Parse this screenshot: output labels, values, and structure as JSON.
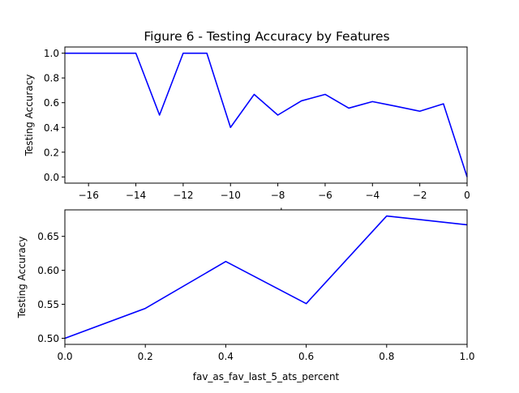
{
  "figure": {
    "title": "Figure 6 - Testing Accuracy by Features"
  },
  "chart_data": [
    {
      "type": "line",
      "title": "Figure 6 - Testing Accuracy by Features",
      "xlabel": "spread",
      "ylabel": "Testing Accuracy",
      "xlim": [
        -17,
        0
      ],
      "ylim": [
        -0.05,
        1.05
      ],
      "xticks": [
        -16,
        -14,
        -12,
        -10,
        -8,
        -6,
        -4,
        -2,
        0
      ],
      "yticks": [
        0.0,
        0.2,
        0.4,
        0.6,
        0.8,
        1.0
      ],
      "xtick_labels": [
        "−16",
        "−14",
        "−12",
        "−10",
        "−8",
        "−6",
        "−4",
        "−2",
        "0"
      ],
      "ytick_labels": [
        "0.0",
        "0.2",
        "0.4",
        "0.6",
        "0.8",
        "1.0"
      ],
      "grid": false,
      "series": [
        {
          "color": "#0000ff",
          "x": [
            -17,
            -16,
            -15,
            -14,
            -13,
            -12,
            -11,
            -10,
            -9,
            -8,
            -7,
            -6,
            -5,
            -4,
            -3,
            -2,
            -1,
            0
          ],
          "y": [
            1.0,
            1.0,
            1.0,
            1.0,
            0.5,
            1.0,
            1.0,
            0.4,
            0.667,
            0.5,
            0.615,
            0.667,
            0.556,
            0.609,
            0.571,
            0.531,
            0.591,
            0.0
          ]
        }
      ]
    },
    {
      "type": "line",
      "xlabel": "fav_as_fav_last_5_ats_percent",
      "ylabel": "Testing Accuracy",
      "xlim": [
        0.0,
        1.0
      ],
      "ylim": [
        0.491,
        0.689
      ],
      "xticks": [
        0.0,
        0.2,
        0.4,
        0.6,
        0.8,
        1.0
      ],
      "yticks": [
        0.5,
        0.55,
        0.6,
        0.65
      ],
      "xtick_labels": [
        "0.0",
        "0.2",
        "0.4",
        "0.6",
        "0.8",
        "1.0"
      ],
      "ytick_labels": [
        "0.50",
        "0.55",
        "0.60",
        "0.65"
      ],
      "grid": false,
      "series": [
        {
          "color": "#0000ff",
          "x": [
            0.0,
            0.2,
            0.4,
            0.6,
            0.8,
            1.0
          ],
          "y": [
            0.5,
            0.544,
            0.613,
            0.551,
            0.68,
            0.667
          ]
        }
      ]
    }
  ]
}
